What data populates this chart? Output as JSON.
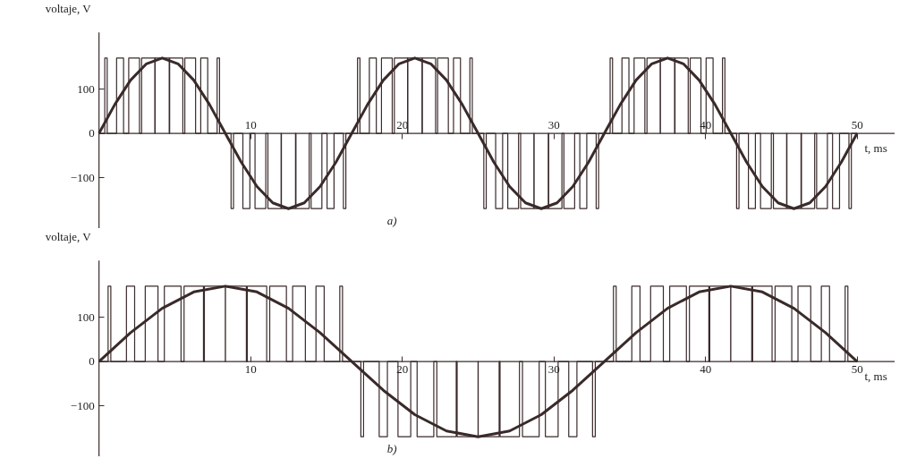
{
  "chart_data": [
    {
      "type": "line",
      "xlabel": "t, ms",
      "ylabel": "voltaje, V",
      "annotations": [
        "a)"
      ],
      "xlim": [
        -6.5,
        52.5
      ],
      "ylim": [
        -215,
        300
      ],
      "xticks": [
        10,
        20,
        30,
        40,
        50
      ],
      "yticks": [
        -100,
        0,
        100
      ],
      "grid": false,
      "series": [
        {
          "type": "step",
          "color": "#3a2a2a",
          "x": [
            0,
            0.38,
            0.54,
            1.16,
            1.62,
            1.96,
            2.67,
            2.81,
            3.68,
            3.7,
            4.63,
            4.66,
            5.53,
            5.66,
            6.37,
            6.71,
            7.17,
            7.79,
            7.95,
            8.71,
            8.87,
            9.49,
            9.95,
            10.29,
            11.0,
            11.14,
            12.01,
            12.03,
            12.96,
            12.99,
            13.86,
            13.99,
            14.7,
            15.04,
            15.5,
            16.12,
            16.28,
            17.05,
            17.21,
            17.83,
            18.29,
            18.63,
            19.34,
            19.48,
            20.35,
            20.37,
            21.3,
            21.33,
            22.2,
            22.33,
            23.04,
            23.38,
            23.84,
            24.46,
            24.62,
            25.38,
            25.54,
            26.16,
            26.62,
            26.96,
            27.67,
            27.81,
            28.68,
            28.7,
            29.63,
            29.66,
            30.53,
            30.66,
            31.37,
            31.71,
            32.17,
            32.79,
            32.95,
            33.71,
            33.87,
            34.49,
            34.95,
            35.29,
            36.0,
            36.14,
            37.01,
            37.03,
            37.96,
            37.99,
            38.86,
            38.99,
            39.7,
            40.04,
            40.5,
            41.12,
            41.28,
            42.05,
            42.21,
            42.83,
            43.29,
            43.63,
            44.34,
            44.48,
            45.35,
            45.37,
            46.3,
            46.33,
            47.2,
            47.33,
            48.04,
            48.38,
            48.84,
            49.46,
            49.62,
            50
          ],
          "values": [
            0,
            170,
            0,
            170,
            0,
            170,
            0,
            170,
            0,
            170,
            0,
            170,
            0,
            170,
            0,
            170,
            0,
            170,
            0,
            -170,
            0,
            -170,
            0,
            -170,
            0,
            -170,
            0,
            -170,
            0,
            -170,
            0,
            -170,
            0,
            -170,
            0,
            -170,
            0,
            170,
            0,
            170,
            0,
            170,
            0,
            170,
            0,
            170,
            0,
            170,
            0,
            170,
            0,
            170,
            0,
            170,
            0,
            -170,
            0,
            -170,
            0,
            -170,
            0,
            -170,
            0,
            -170,
            0,
            -170,
            0,
            -170,
            0,
            -170,
            0,
            -170,
            0,
            170,
            0,
            170,
            0,
            170,
            0,
            170,
            0,
            170,
            0,
            170,
            0,
            170,
            0,
            170,
            0,
            170,
            0,
            -170,
            0,
            -170,
            0,
            -170,
            0,
            -170,
            0,
            -170,
            0,
            -170,
            0,
            -170,
            0,
            -170,
            0,
            -170,
            0,
            0
          ]
        },
        {
          "type": "line",
          "color": "#3a2a2a",
          "x": [
            0,
            1.04,
            2.08,
            3.13,
            4.17,
            5.21,
            6.25,
            7.29,
            8.33,
            9.38,
            10.42,
            11.46,
            12.5,
            13.54,
            14.58,
            15.63,
            16.67,
            17.71,
            18.75,
            19.79,
            20.83,
            21.88,
            22.92,
            23.96,
            25,
            26.04,
            27.08,
            28.13,
            29.17,
            30.21,
            31.25,
            32.29,
            33.33,
            34.38,
            35.42,
            36.46,
            37.5,
            38.54,
            39.58,
            40.63,
            41.67,
            42.71,
            43.75,
            44.79,
            45.83,
            46.88,
            47.92,
            48.96,
            50
          ],
          "values": [
            0,
            65,
            120,
            157,
            170,
            157,
            120,
            65,
            0,
            -65,
            -120,
            -157,
            -170,
            -157,
            -120,
            -65,
            0,
            65,
            120,
            157,
            170,
            157,
            120,
            65,
            0,
            -65,
            -120,
            -157,
            -170,
            -157,
            -120,
            -65,
            0,
            65,
            120,
            157,
            170,
            157,
            120,
            65,
            0,
            -65,
            -120,
            -157,
            -170,
            -157,
            -120,
            -65,
            0
          ]
        }
      ]
    },
    {
      "type": "line",
      "xlabel": "t, ms",
      "ylabel": "voltaje, V",
      "annotations": [
        "b)"
      ],
      "xlim": [
        -6.5,
        52.5
      ],
      "ylim": [
        -215,
        300
      ],
      "xticks": [
        10,
        20,
        30,
        40,
        50
      ],
      "yticks": [
        -100,
        0,
        100
      ],
      "grid": false,
      "series": [
        {
          "type": "step",
          "color": "#3a2a2a",
          "x": [
            0,
            0.6,
            0.78,
            1.81,
            2.35,
            3.05,
            3.89,
            4.31,
            5.41,
            5.61,
            6.89,
            6.95,
            8.33,
            8.34,
            9.72,
            9.78,
            11.06,
            11.26,
            12.36,
            12.77,
            13.61,
            14.31,
            14.85,
            15.88,
            16.06,
            17.27,
            17.45,
            18.48,
            19.02,
            19.72,
            20.56,
            20.98,
            22.08,
            22.28,
            23.56,
            23.62,
            25.0,
            25.01,
            26.39,
            26.45,
            27.73,
            27.93,
            29.03,
            29.44,
            30.28,
            30.98,
            31.52,
            32.55,
            32.73,
            33.93,
            34.11,
            35.14,
            35.68,
            36.38,
            37.22,
            37.64,
            38.74,
            38.94,
            40.22,
            40.28,
            41.66,
            41.67,
            43.05,
            43.11,
            44.39,
            44.59,
            45.69,
            46.1,
            46.94,
            47.64,
            48.18,
            49.21,
            49.39,
            50
          ],
          "values": [
            0,
            170,
            0,
            170,
            0,
            170,
            0,
            170,
            0,
            170,
            0,
            170,
            0,
            170,
            0,
            170,
            0,
            170,
            0,
            170,
            0,
            170,
            0,
            170,
            0,
            -170,
            0,
            -170,
            0,
            -170,
            0,
            -170,
            0,
            -170,
            0,
            -170,
            0,
            -170,
            0,
            -170,
            0,
            -170,
            0,
            -170,
            0,
            -170,
            0,
            -170,
            0,
            170,
            0,
            170,
            0,
            170,
            0,
            170,
            0,
            170,
            0,
            170,
            0,
            170,
            0,
            170,
            0,
            170,
            0,
            170,
            0,
            170,
            0,
            170,
            0,
            0
          ]
        },
        {
          "type": "line",
          "color": "#3a2a2a",
          "x": [
            0,
            2.08,
            4.17,
            6.25,
            8.33,
            10.42,
            12.5,
            14.58,
            16.67,
            18.75,
            20.83,
            22.92,
            25,
            27.08,
            29.17,
            31.25,
            33.33,
            35.42,
            37.5,
            39.58,
            41.67,
            43.75,
            45.83,
            47.92,
            50
          ],
          "values": [
            0,
            65,
            120,
            157,
            170,
            157,
            120,
            65,
            0,
            -65,
            -120,
            -157,
            -170,
            -157,
            -120,
            -65,
            0,
            65,
            120,
            157,
            170,
            157,
            120,
            65,
            0
          ]
        }
      ]
    }
  ]
}
